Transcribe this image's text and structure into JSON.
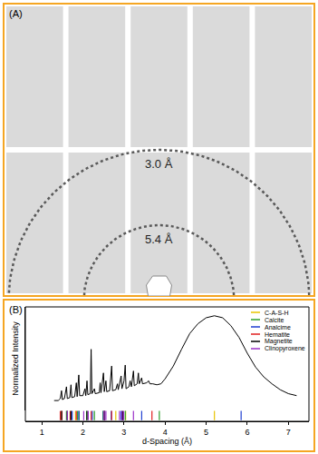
{
  "panel_a": {
    "label": "(A)",
    "rings": [
      {
        "label": "3.0 Å"
      },
      {
        "label": "5.4 Å"
      }
    ]
  },
  "chart_data": {
    "type": "line",
    "label": "(B)",
    "x_label": "d-Spacing (Å)",
    "y_label": "Normalized Intensity",
    "x": [
      1.3,
      1.4,
      1.45,
      1.48,
      1.5,
      1.55,
      1.6,
      1.62,
      1.68,
      1.71,
      1.73,
      1.8,
      1.84,
      1.86,
      1.9,
      1.92,
      2.0,
      2.05,
      2.07,
      2.1,
      2.12,
      2.18,
      2.2,
      2.22,
      2.28,
      2.3,
      2.4,
      2.42,
      2.44,
      2.5,
      2.52,
      2.56,
      2.58,
      2.65,
      2.7,
      2.72,
      2.8,
      2.84,
      2.86,
      2.93,
      2.95,
      3.0,
      3.03,
      3.05,
      3.12,
      3.15,
      3.18,
      3.23,
      3.25,
      3.32,
      3.35,
      3.37,
      3.43,
      3.45,
      3.55,
      3.6,
      3.63,
      3.7,
      3.8,
      3.9,
      4.0,
      4.2,
      4.4,
      4.6,
      4.8,
      5.0,
      5.2,
      5.4,
      5.6,
      5.8,
      6.0,
      6.2,
      6.4,
      6.6,
      6.8,
      7.0,
      7.2
    ],
    "values": [
      0.1,
      0.1,
      0.12,
      0.2,
      0.11,
      0.12,
      0.24,
      0.12,
      0.13,
      0.26,
      0.13,
      0.14,
      0.28,
      0.14,
      0.36,
      0.15,
      0.15,
      0.22,
      0.15,
      0.3,
      0.16,
      0.17,
      0.62,
      0.17,
      0.22,
      0.17,
      0.18,
      0.28,
      0.18,
      0.38,
      0.19,
      0.3,
      0.19,
      0.2,
      0.45,
      0.2,
      0.21,
      0.27,
      0.21,
      0.35,
      0.22,
      0.3,
      0.46,
      0.22,
      0.24,
      0.3,
      0.24,
      0.4,
      0.25,
      0.27,
      0.38,
      0.27,
      0.33,
      0.27,
      0.28,
      0.3,
      0.27,
      0.27,
      0.26,
      0.27,
      0.32,
      0.45,
      0.62,
      0.78,
      0.88,
      0.94,
      0.96,
      0.94,
      0.86,
      0.74,
      0.58,
      0.44,
      0.34,
      0.27,
      0.21,
      0.17,
      0.15
    ],
    "color": "#000000",
    "xlim": [
      0.6,
      7.5
    ],
    "xticks": [
      1,
      2,
      3,
      4,
      5,
      6,
      7
    ],
    "ylim": [
      0,
      1.05
    ],
    "yticks": [],
    "tick_labels": "x",
    "grid": false,
    "legend": "upper right",
    "series": [
      {
        "name": "C-A-S-H",
        "color": "#e8c400",
        "type": "rug",
        "x": [
          1.82,
          2.8,
          3.04,
          5.2
        ]
      },
      {
        "name": "Calcite",
        "color": "#2ca02c",
        "type": "rug",
        "x": [
          1.6,
          1.87,
          1.91,
          2.09,
          2.28,
          2.49,
          3.03,
          3.86
        ]
      },
      {
        "name": "Analcime",
        "color": "#1f3fd0",
        "type": "rug",
        "x": [
          1.74,
          1.9,
          2.23,
          2.5,
          2.69,
          2.93,
          3.43,
          5.85
        ]
      },
      {
        "name": "Hematite",
        "color": "#e02020",
        "type": "rug",
        "x": [
          1.45,
          1.49,
          1.69,
          1.84,
          2.2,
          2.52,
          2.7,
          3.68
        ]
      },
      {
        "name": "Magnetite",
        "color": "#000000",
        "type": "rug",
        "x": [
          1.48,
          1.62,
          1.71,
          2.1,
          2.53,
          2.97
        ]
      },
      {
        "name": "Clinopyroxene",
        "color": "#9b30c8",
        "type": "rug",
        "x": [
          1.62,
          2.02,
          2.13,
          2.52,
          2.56,
          2.89,
          2.95,
          2.99,
          3.23
        ]
      }
    ]
  }
}
